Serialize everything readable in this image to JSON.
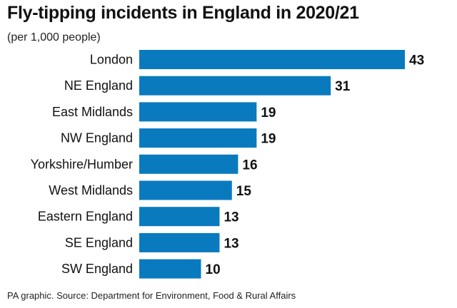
{
  "chart_data": {
    "type": "bar",
    "orientation": "horizontal",
    "title": "Fly-tipping incidents in England in 2020/21",
    "subtitle": "(per 1,000 people)",
    "categories": [
      "London",
      "NE England",
      "East Midlands",
      "NW England",
      "Yorkshire/Humber",
      "West Midlands",
      "Eastern England",
      "SE England",
      "SW England"
    ],
    "values": [
      43,
      31,
      19,
      19,
      16,
      15,
      13,
      13,
      10
    ],
    "value_labels": [
      "43",
      "31",
      "19",
      "19",
      "16",
      "15",
      "13",
      "13",
      "10"
    ],
    "xlim": [
      0,
      43
    ],
    "grid": false,
    "legend": "none",
    "bar_color": "#0a7abf"
  },
  "source": "PA graphic. Source: Department for Environment, Food & Rural Affairs"
}
